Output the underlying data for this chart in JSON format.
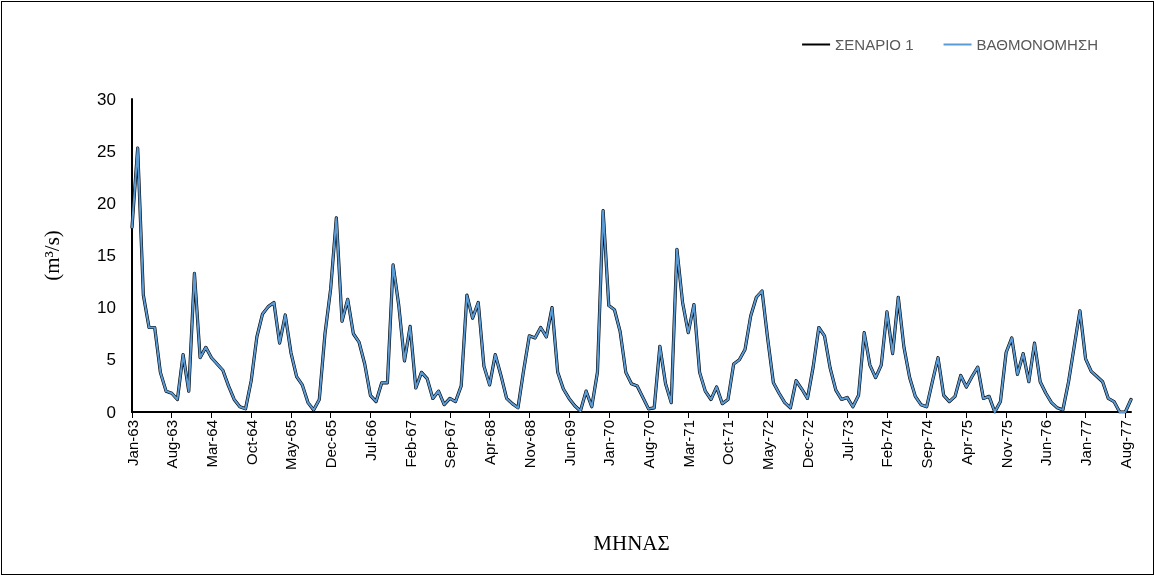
{
  "chart_data": {
    "type": "line",
    "xlabel": "ΜΗΝΑΣ",
    "ylabel": "(m³/s)",
    "categories": [
      "Jan-63",
      null,
      null,
      null,
      null,
      null,
      null,
      "Aug-63",
      null,
      null,
      null,
      null,
      null,
      null,
      "Mar-64",
      null,
      null,
      null,
      null,
      null,
      null,
      "Oct-64",
      null,
      null,
      null,
      null,
      null,
      null,
      "May-65",
      null,
      null,
      null,
      null,
      null,
      null,
      "Dec-65",
      null,
      null,
      null,
      null,
      null,
      null,
      "Jul-66",
      null,
      null,
      null,
      null,
      null,
      null,
      "Feb-67",
      null,
      null,
      null,
      null,
      null,
      null,
      "Sep-67",
      null,
      null,
      null,
      null,
      null,
      null,
      "Apr-68",
      null,
      null,
      null,
      null,
      null,
      null,
      "Nov-68",
      null,
      null,
      null,
      null,
      null,
      null,
      "Jun-69",
      null,
      null,
      null,
      null,
      null,
      null,
      "Jan-70",
      null,
      null,
      null,
      null,
      null,
      null,
      "Aug-70",
      null,
      null,
      null,
      null,
      null,
      null,
      "Mar-71",
      null,
      null,
      null,
      null,
      null,
      null,
      "Oct-71",
      null,
      null,
      null,
      null,
      null,
      null,
      "May-72",
      null,
      null,
      null,
      null,
      null,
      null,
      "Dec-72",
      null,
      null,
      null,
      null,
      null,
      null,
      "Jul-73",
      null,
      null,
      null,
      null,
      null,
      null,
      "Feb-74",
      null,
      null,
      null,
      null,
      null,
      null,
      "Sep-74",
      null,
      null,
      null,
      null,
      null,
      null,
      "Apr-75",
      null,
      null,
      null,
      null,
      null,
      null,
      "Nov-75",
      null,
      null,
      null,
      null,
      null,
      null,
      "Jun-76",
      null,
      null,
      null,
      null,
      null,
      null,
      "Jan-77",
      null,
      null,
      null,
      null,
      null,
      null,
      "Aug-77",
      null
    ],
    "series": [
      {
        "name": "ΣΕΝΑΡΙΟ 1",
        "color": "#000000",
        "values": [
          17.7,
          25.3,
          11.2,
          8.1,
          8.1,
          3.8,
          2.0,
          1.8,
          1.2,
          5.5,
          2.0,
          13.3,
          5.2,
          6.2,
          5.2,
          4.6,
          4.0,
          2.5,
          1.2,
          0.5,
          0.3,
          3.0,
          7.2,
          9.4,
          10.1,
          10.5,
          6.6,
          9.3,
          5.7,
          3.4,
          2.6,
          0.9,
          0.2,
          1.2,
          7.5,
          11.8,
          18.6,
          8.7,
          10.8,
          7.5,
          6.7,
          4.6,
          1.6,
          1.0,
          2.8,
          2.8,
          14.1,
          10.2,
          4.9,
          8.2,
          2.3,
          3.8,
          3.2,
          1.3,
          2.0,
          0.7,
          1.3,
          1.0,
          2.5,
          11.2,
          9.0,
          10.5,
          4.4,
          2.6,
          5.5,
          3.5,
          1.3,
          0.8,
          0.4,
          4.0,
          7.3,
          7.1,
          8.1,
          7.2,
          10.0,
          3.8,
          2.2,
          1.3,
          0.6,
          0.1,
          2.0,
          0.5,
          3.8,
          19.3,
          10.2,
          9.8,
          7.7,
          3.8,
          2.7,
          2.5,
          1.4,
          0.3,
          0.4,
          6.3,
          2.7,
          0.9,
          15.6,
          10.5,
          7.6,
          10.3,
          3.8,
          2.0,
          1.2,
          2.4,
          0.8,
          1.2,
          4.6,
          5.0,
          6.0,
          9.2,
          11.0,
          11.6,
          7.0,
          2.8,
          1.8,
          0.9,
          0.4,
          3.0,
          2.2,
          1.3,
          4.3,
          8.1,
          7.3,
          4.2,
          2.1,
          1.2,
          1.4,
          0.5,
          1.6,
          7.6,
          4.5,
          3.3,
          4.5,
          9.6,
          5.6,
          11.0,
          6.2,
          3.3,
          1.5,
          0.7,
          0.5,
          2.9,
          5.2,
          1.6,
          1.0,
          1.5,
          3.5,
          2.4,
          3.4,
          4.3,
          1.3,
          1.5,
          0.0,
          1.0,
          5.7,
          7.1,
          3.6,
          5.6,
          2.9,
          6.6,
          2.9,
          1.8,
          0.9,
          0.4,
          0.2,
          2.9,
          6.3,
          9.7,
          5.1,
          3.9,
          3.4,
          2.9,
          1.3,
          1.0,
          0.0,
          0.0,
          1.2
        ]
      },
      {
        "name": "ΒΑΘΜΟΝΟΜΗΣΗ",
        "color": "#5b9bd5",
        "values": [
          17.7,
          25.3,
          11.2,
          8.1,
          8.1,
          3.8,
          2.0,
          1.8,
          1.2,
          5.5,
          2.0,
          13.3,
          5.2,
          6.2,
          5.2,
          4.6,
          4.0,
          2.5,
          1.2,
          0.5,
          0.3,
          3.0,
          7.2,
          9.4,
          10.1,
          10.5,
          6.6,
          9.3,
          5.7,
          3.4,
          2.6,
          0.9,
          0.2,
          1.2,
          7.5,
          11.8,
          18.6,
          8.7,
          10.8,
          7.5,
          6.7,
          4.6,
          1.6,
          1.0,
          2.8,
          2.8,
          14.1,
          10.2,
          4.9,
          8.2,
          2.3,
          3.8,
          3.2,
          1.3,
          2.0,
          0.7,
          1.3,
          1.0,
          2.5,
          11.2,
          9.0,
          10.5,
          4.4,
          2.6,
          5.5,
          3.5,
          1.3,
          0.8,
          0.4,
          4.0,
          7.3,
          7.1,
          8.1,
          7.2,
          10.0,
          3.8,
          2.2,
          1.3,
          0.6,
          0.1,
          2.0,
          0.5,
          3.8,
          19.3,
          10.2,
          9.8,
          7.7,
          3.8,
          2.7,
          2.5,
          1.4,
          0.3,
          0.4,
          6.3,
          2.7,
          0.9,
          15.6,
          10.5,
          7.6,
          10.3,
          3.8,
          2.0,
          1.2,
          2.4,
          0.8,
          1.2,
          4.6,
          5.0,
          6.0,
          9.2,
          11.0,
          11.6,
          7.0,
          2.8,
          1.8,
          0.9,
          0.4,
          3.0,
          2.2,
          1.3,
          4.3,
          8.1,
          7.3,
          4.2,
          2.1,
          1.2,
          1.4,
          0.5,
          1.6,
          7.6,
          4.5,
          3.3,
          4.5,
          9.6,
          5.6,
          11.0,
          6.2,
          3.3,
          1.5,
          0.7,
          0.5,
          2.9,
          5.2,
          1.6,
          1.0,
          1.5,
          3.5,
          2.4,
          3.4,
          4.3,
          1.3,
          1.5,
          0.0,
          1.0,
          5.7,
          7.1,
          3.6,
          5.6,
          2.9,
          6.6,
          2.9,
          1.8,
          0.9,
          0.4,
          0.2,
          2.9,
          6.3,
          9.7,
          5.1,
          3.9,
          3.4,
          2.9,
          1.3,
          1.0,
          0.0,
          0.0,
          1.2
        ]
      }
    ],
    "ylim": [
      0,
      30
    ],
    "yticks": [
      0,
      5,
      10,
      15,
      20,
      25,
      30
    ],
    "grid": false,
    "legend": "top right",
    "marker": "none",
    "line_style": "solid"
  }
}
